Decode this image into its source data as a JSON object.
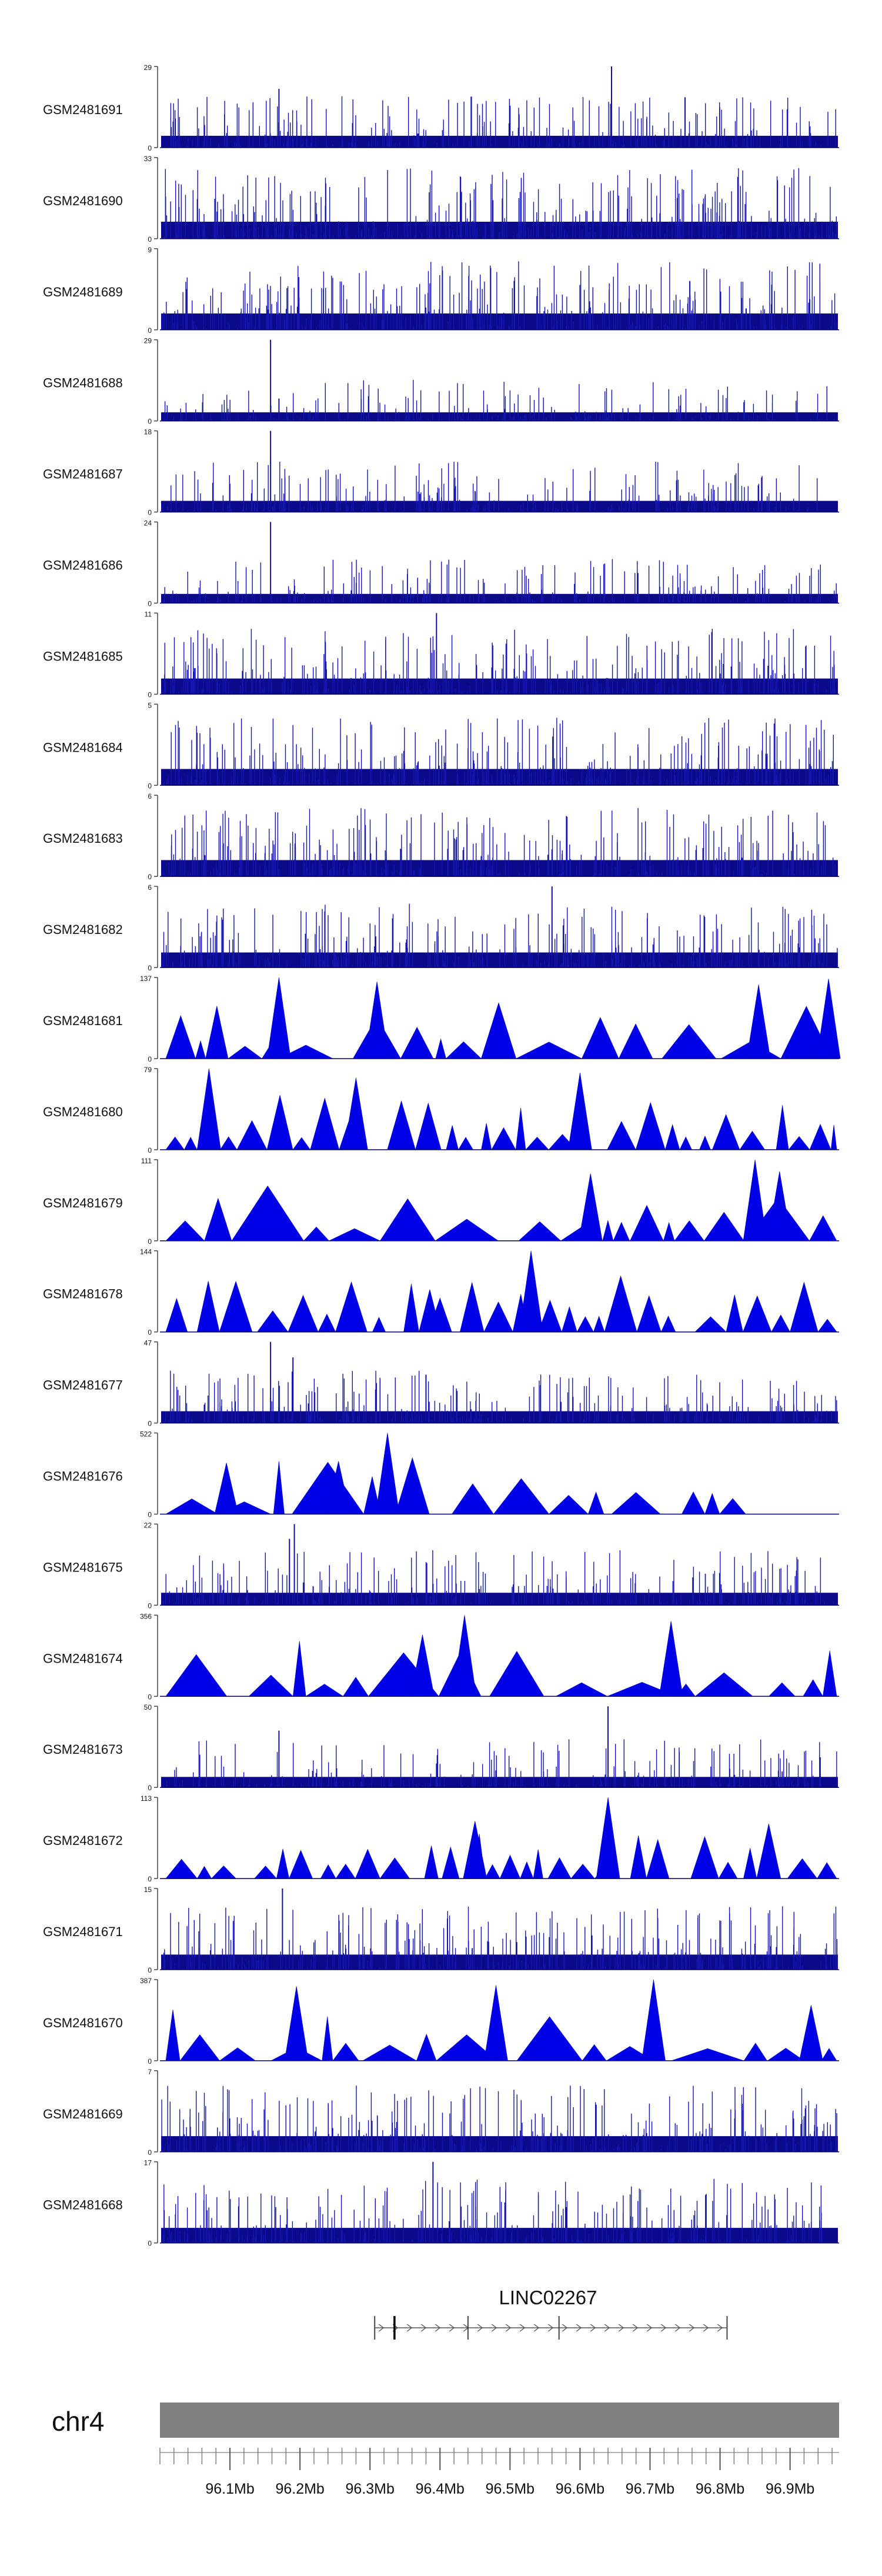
{
  "chart_data": {
    "type": "area",
    "title": "",
    "chromosome": "chr4",
    "x_range": [
      96.0,
      96.97
    ],
    "x_unit": "Mb",
    "x_ticks": [
      {
        "value": 96.1,
        "label": "96.1Mb"
      },
      {
        "value": 96.2,
        "label": "96.2Mb"
      },
      {
        "value": 96.3,
        "label": "96.3Mb"
      },
      {
        "value": 96.4,
        "label": "96.4Mb"
      },
      {
        "value": 96.5,
        "label": "96.5Mb"
      },
      {
        "value": 96.6,
        "label": "96.6Mb"
      },
      {
        "value": 96.7,
        "label": "96.7Mb"
      },
      {
        "value": 96.8,
        "label": "96.8Mb"
      },
      {
        "value": 96.9,
        "label": "96.9Mb"
      }
    ],
    "gene": {
      "name": "LINC02267",
      "start": 96.3,
      "end": 96.81,
      "strand": "+",
      "exons": [
        96.335,
        96.44,
        96.57,
        96.81
      ]
    },
    "series": [
      {
        "name": "GSM2481691",
        "ylim": [
          0,
          29
        ],
        "style": "bars",
        "density": 0.55,
        "peaks": [
          [
            96.645,
            29
          ],
          [
            96.17,
            21
          ],
          [
            96.75,
            18
          ],
          [
            96.5,
            15
          ]
        ]
      },
      {
        "name": "GSM2481690",
        "ylim": [
          0,
          33
        ],
        "style": "bars",
        "density": 0.95,
        "peaks": []
      },
      {
        "name": "GSM2481689",
        "ylim": [
          0,
          9
        ],
        "style": "bars",
        "density": 0.9,
        "peaks": []
      },
      {
        "name": "GSM2481688",
        "ylim": [
          0,
          29
        ],
        "style": "bars",
        "density": 0.3,
        "peaks": [
          [
            96.158,
            29
          ],
          [
            96.17,
            8
          ]
        ]
      },
      {
        "name": "GSM2481687",
        "ylim": [
          0,
          18
        ],
        "style": "bars",
        "density": 0.5,
        "peaks": [
          [
            96.158,
            18
          ]
        ]
      },
      {
        "name": "GSM2481686",
        "ylim": [
          0,
          24
        ],
        "style": "bars",
        "density": 0.35,
        "peaks": [
          [
            96.158,
            24
          ]
        ]
      },
      {
        "name": "GSM2481685",
        "ylim": [
          0,
          11
        ],
        "style": "bars",
        "density": 0.85,
        "peaks": [
          [
            96.395,
            11
          ]
        ]
      },
      {
        "name": "GSM2481684",
        "ylim": [
          0,
          5
        ],
        "style": "bars",
        "density": 0.9,
        "peaks": []
      },
      {
        "name": "GSM2481683",
        "ylim": [
          0,
          6
        ],
        "style": "bars",
        "density": 0.9,
        "peaks": []
      },
      {
        "name": "GSM2481682",
        "ylim": [
          0,
          6
        ],
        "style": "bars",
        "density": 0.8,
        "peaks": [
          [
            96.56,
            6
          ]
        ]
      },
      {
        "name": "GSM2481681",
        "ylim": [
          0,
          137
        ],
        "style": "triangles",
        "density": 0.6,
        "peaks": [
          [
            96.17,
            137
          ],
          [
            96.31,
            130
          ],
          [
            96.855,
            125
          ],
          [
            96.955,
            135
          ]
        ]
      },
      {
        "name": "GSM2481680",
        "ylim": [
          0,
          79
        ],
        "style": "triangles",
        "density": 0.7,
        "peaks": [
          [
            96.07,
            79
          ],
          [
            96.28,
            70
          ],
          [
            96.6,
            75
          ]
        ]
      },
      {
        "name": "GSM2481679",
        "ylim": [
          0,
          111
        ],
        "style": "triangles",
        "density": 0.5,
        "peaks": [
          [
            96.85,
            111
          ],
          [
            96.885,
            95
          ],
          [
            96.615,
            92
          ]
        ]
      },
      {
        "name": "GSM2481678",
        "ylim": [
          0,
          144
        ],
        "style": "triangles",
        "density": 0.7,
        "peaks": [
          [
            96.53,
            144
          ],
          [
            96.4,
            60
          ]
        ]
      },
      {
        "name": "GSM2481677",
        "ylim": [
          0,
          47
        ],
        "style": "bars",
        "density": 0.55,
        "peaks": [
          [
            96.158,
            47
          ],
          [
            96.19,
            38
          ],
          [
            96.38,
            28
          ]
        ]
      },
      {
        "name": "GSM2481676",
        "ylim": [
          0,
          522
        ],
        "style": "triangles",
        "density": 0.3,
        "max_x": 96.84,
        "peaks": [
          [
            96.325,
            522
          ],
          [
            96.255,
            340
          ],
          [
            96.095,
            330
          ]
        ]
      },
      {
        "name": "GSM2481675",
        "ylim": [
          0,
          22
        ],
        "style": "bars",
        "density": 0.6,
        "peaks": [
          [
            96.192,
            22
          ],
          [
            96.185,
            18
          ]
        ]
      },
      {
        "name": "GSM2481674",
        "ylim": [
          0,
          356
        ],
        "style": "triangles",
        "density": 0.5,
        "peaks": [
          [
            96.435,
            356
          ],
          [
            96.73,
            330
          ],
          [
            96.375,
            270
          ]
        ]
      },
      {
        "name": "GSM2481673",
        "ylim": [
          0,
          50
        ],
        "style": "bars",
        "density": 0.45,
        "peaks": [
          [
            96.64,
            50
          ],
          [
            96.17,
            35
          ]
        ]
      },
      {
        "name": "GSM2481672",
        "ylim": [
          0,
          113
        ],
        "style": "triangles",
        "density": 0.75,
        "peaks": [
          [
            96.64,
            113
          ],
          [
            96.45,
            80
          ]
        ]
      },
      {
        "name": "GSM2481671",
        "ylim": [
          0,
          15
        ],
        "style": "bars",
        "density": 0.8,
        "peaks": [
          [
            96.175,
            15
          ]
        ]
      },
      {
        "name": "GSM2481670",
        "ylim": [
          0,
          387
        ],
        "style": "triangles",
        "density": 0.45,
        "peaks": [
          [
            96.705,
            387
          ],
          [
            96.195,
            355
          ],
          [
            96.48,
            360
          ],
          [
            96.93,
            265
          ]
        ]
      },
      {
        "name": "GSM2481669",
        "ylim": [
          0,
          7
        ],
        "style": "bars",
        "density": 0.85,
        "peaks": []
      },
      {
        "name": "GSM2481668",
        "ylim": [
          0,
          17
        ],
        "style": "bars",
        "density": 0.8,
        "peaks": [
          [
            96.39,
            17
          ]
        ]
      }
    ]
  }
}
